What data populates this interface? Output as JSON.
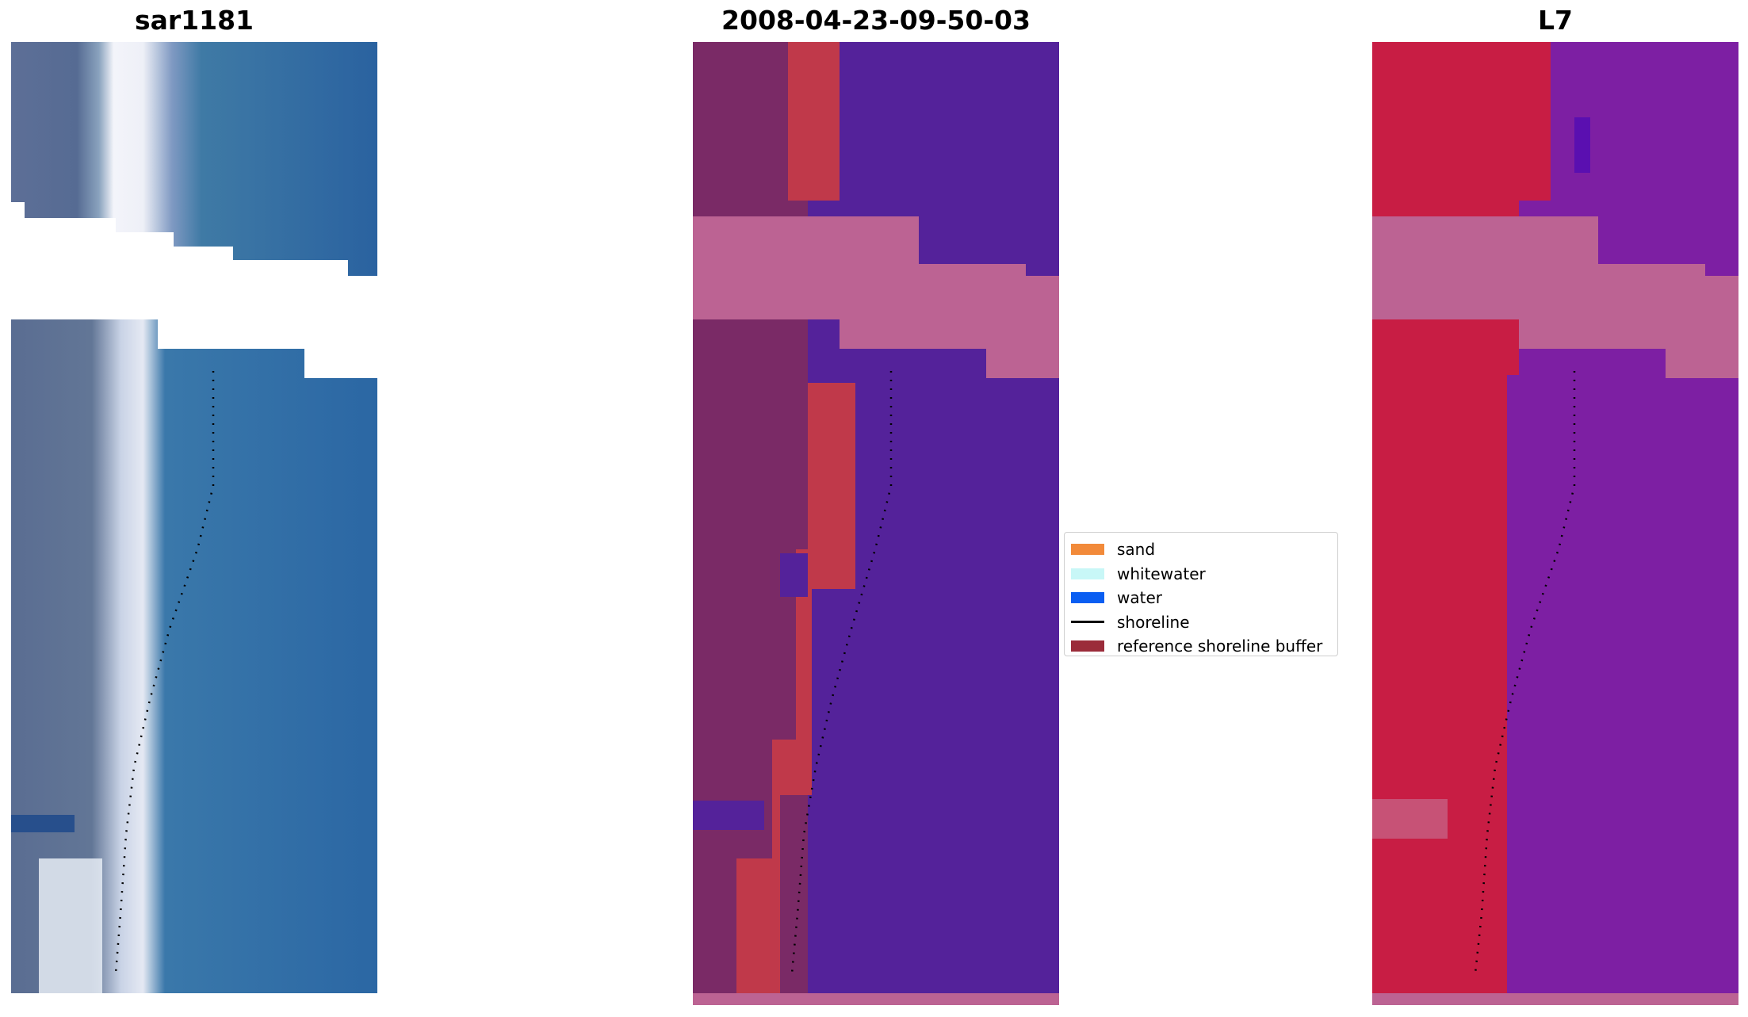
{
  "panels": [
    {
      "title": "sar1181",
      "image": "true-color-rgb-tile"
    },
    {
      "title": "2008-04-23-09-50-03",
      "image": "classified-image-overlay"
    },
    {
      "title": "L7",
      "image": "false-color-index-tile"
    }
  ],
  "legend": {
    "items": [
      {
        "label": "sand",
        "color": "#f28a3a",
        "kind": "patch"
      },
      {
        "label": "whitewater",
        "color": "#c8f7f7",
        "kind": "patch"
      },
      {
        "label": "water",
        "color": "#0a5ef2",
        "kind": "patch"
      },
      {
        "label": "shoreline",
        "color": "#000000",
        "kind": "line"
      },
      {
        "label": "reference shoreline buffer",
        "color": "#9b2c3a",
        "kind": "patch"
      }
    ]
  },
  "colors": {
    "cloud_mask": "#ffffff",
    "nodata_overlay": "#bc6393",
    "ocean_rgb": "#2a67a3",
    "land_rgb": "#5b6f92",
    "ocean_class": "#54229a",
    "land_class": "#7a2a66",
    "buffer_class": "#c0394a",
    "land_index": "#c81d44",
    "ocean_index": "#7d1fa3"
  }
}
